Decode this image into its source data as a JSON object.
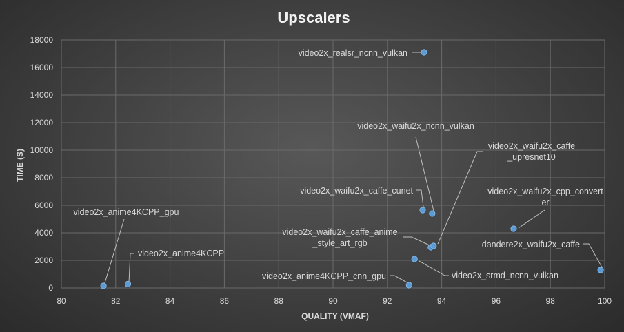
{
  "chart_data": {
    "type": "scatter",
    "title": "Upscalers",
    "xlabel": "QUALITY (VMAF)",
    "ylabel": "TIME (S)",
    "xlim": [
      80,
      100
    ],
    "ylim": [
      0,
      18000
    ],
    "x_ticks": [
      "80",
      "82",
      "84",
      "86",
      "88",
      "90",
      "92",
      "94",
      "96",
      "98",
      "100"
    ],
    "y_ticks": [
      "0",
      "2000",
      "4000",
      "6000",
      "8000",
      "10000",
      "12000",
      "14000",
      "16000",
      "18000"
    ],
    "grid": true,
    "marker_color": "#5b9bd5",
    "points": [
      {
        "label": "video2x_anime4KCPP_gpu",
        "x": 81.55,
        "y": 150
      },
      {
        "label": "video2x_anime4KCPP",
        "x": 82.45,
        "y": 280
      },
      {
        "label": "video2x_anime4KCPP_cnn_gpu",
        "x": 92.8,
        "y": 200
      },
      {
        "label": "video2x_srmd_ncnn_vulkan",
        "x": 93.0,
        "y": 2100
      },
      {
        "label": "video2x_waifu2x_caffe_anime_style_art_rgb",
        "x": 93.6,
        "y": 2950
      },
      {
        "label": "video2x_waifu2x_caffe_upresnet10",
        "x": 93.7,
        "y": 3050
      },
      {
        "label": "video2x_waifu2x_caffe_cunet",
        "x": 93.3,
        "y": 5650
      },
      {
        "label": "video2x_waifu2x_ncnn_vulkan",
        "x": 93.65,
        "y": 5400
      },
      {
        "label": "video2x_realsr_ncnn_vulkan",
        "x": 93.35,
        "y": 17100
      },
      {
        "label": "video2x_waifu2x_cpp_converter",
        "x": 96.65,
        "y": 4300
      },
      {
        "label": "dandere2x_waifu2x_caffe",
        "x": 99.85,
        "y": 1300
      }
    ]
  }
}
